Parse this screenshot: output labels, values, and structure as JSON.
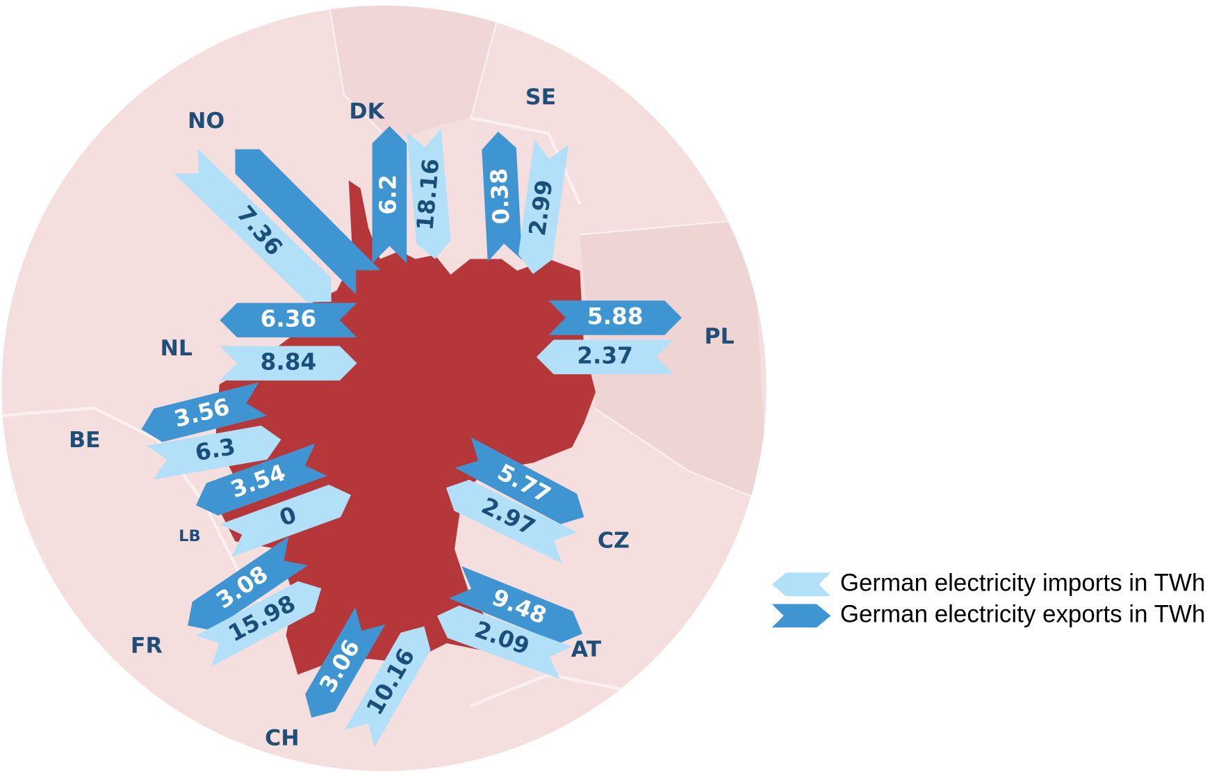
{
  "countries": [
    {
      "name": "NO",
      "import": 7.36
    },
    {
      "name": "DK",
      "import": 18.16,
      "export": 6.2
    },
    {
      "name": "SE",
      "import": 2.99,
      "export": 0.38
    },
    {
      "name": "PL",
      "import": 2.37,
      "export": 5.88
    },
    {
      "name": "NL",
      "import": 8.84,
      "export": 6.36
    },
    {
      "name": "BE",
      "import": 6.3,
      "export": 3.56
    },
    {
      "name": "LB",
      "import": 0,
      "export": 3.54
    },
    {
      "name": "FR",
      "import": 15.98,
      "export": 3.08
    },
    {
      "name": "CH",
      "import": 10.16,
      "export": 3.06
    },
    {
      "name": "CZ",
      "import": 2.97,
      "export": 5.77
    },
    {
      "name": "AT",
      "import": 2.09,
      "export": 9.48
    }
  ],
  "legend": {
    "imports": "German electricity imports in TWh",
    "exports": "German electricity exports in TWh"
  }
}
